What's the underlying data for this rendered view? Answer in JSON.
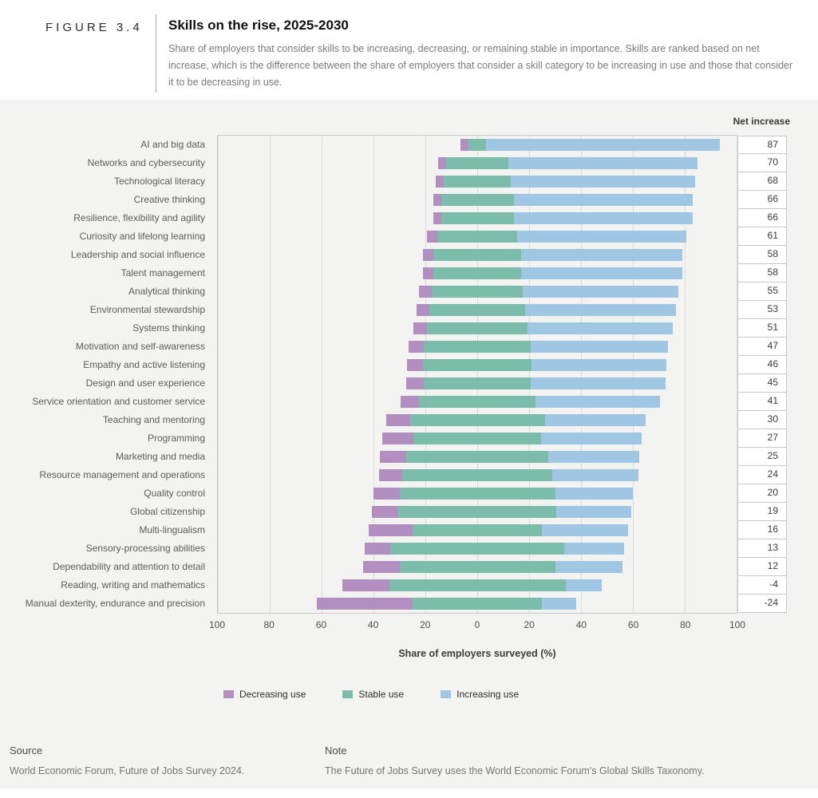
{
  "figure_label": "FIGURE 3.4",
  "header": {
    "title": "Skills on the rise, 2025-2030",
    "description": "Share of employers that consider skills to be increasing, decreasing, or remaining stable in importance. Skills are ranked based on net increase, which is the difference between the share of employers that consider a skill category to be increasing in use and those that consider it to be decreasing in use."
  },
  "net_increase_header": "Net increase",
  "chart_data": {
    "type": "bar",
    "orientation": "horizontal-diverging-stacked",
    "title": "Skills on the rise, 2025-2030",
    "xlabel": "Share of employers surveyed (%)",
    "xlim": [
      -100,
      100
    ],
    "grid": true,
    "legend_position": "bottom",
    "categories": [
      "AI and big data",
      "Networks and cybersecurity",
      "Technological literacy",
      "Creative thinking",
      "Resilience, flexibility and agility",
      "Curiosity and lifelong learning",
      "Leadership and social influence",
      "Talent management",
      "Analytical thinking",
      "Environmental stewardship",
      "Systems thinking",
      "Motivation and self-awareness",
      "Empathy and active listening",
      "Design and user experience",
      "Service orientation and customer service",
      "Teaching and mentoring",
      "Programming",
      "Marketing and media",
      "Resource management and operations",
      "Quality control",
      "Global citizenship",
      "Multi-lingualism",
      "Sensory-processing abilities",
      "Dependability and attention to detail",
      "Reading, writing and mathematics",
      "Manual dexterity, endurance and precision"
    ],
    "series": [
      {
        "name": "Decreasing use",
        "color": "#b28fc0",
        "values": [
          3,
          3,
          3,
          3,
          3,
          4,
          4,
          4,
          5,
          5,
          5,
          6,
          6,
          7,
          7,
          9,
          12,
          10,
          9,
          10,
          10,
          17,
          10,
          14,
          18,
          37
        ]
      },
      {
        "name": "Stable use",
        "color": "#7cbcaa",
        "values": [
          7,
          24,
          26,
          28,
          28,
          31,
          34,
          34,
          35,
          37,
          39,
          41,
          42,
          41,
          45,
          52,
          49,
          55,
          58,
          60,
          61,
          50,
          67,
          60,
          68,
          50
        ]
      },
      {
        "name": "Increasing use",
        "color": "#9fc6e3",
        "values": [
          90,
          73,
          71,
          69,
          69,
          65,
          62,
          62,
          60,
          58,
          56,
          53,
          52,
          52,
          48,
          39,
          39,
          35,
          33,
          30,
          29,
          33,
          23,
          26,
          14,
          13
        ]
      }
    ],
    "net_increase": [
      87,
      70,
      68,
      66,
      66,
      61,
      58,
      58,
      55,
      53,
      51,
      47,
      46,
      45,
      41,
      30,
      27,
      25,
      24,
      20,
      19,
      16,
      13,
      12,
      -4,
      -24
    ],
    "x_tick_values": [
      -100,
      -80,
      -60,
      -40,
      -20,
      0,
      20,
      40,
      60,
      80,
      100
    ],
    "x_tick_labels": [
      "100",
      "80",
      "60",
      "40",
      "20",
      "0",
      "20",
      "40",
      "60",
      "80",
      "100"
    ]
  },
  "legend": [
    {
      "label": "Decreasing use",
      "color": "#b28fc0"
    },
    {
      "label": "Stable use",
      "color": "#7cbcaa"
    },
    {
      "label": "Increasing use",
      "color": "#9fc6e3"
    }
  ],
  "footer": {
    "source_label": "Source",
    "source_text": "World Economic Forum, Future of Jobs Survey 2024.",
    "note_label": "Note",
    "note_text": "The Future of Jobs Survey uses the World Economic Forum's Global Skills Taxonomy."
  }
}
